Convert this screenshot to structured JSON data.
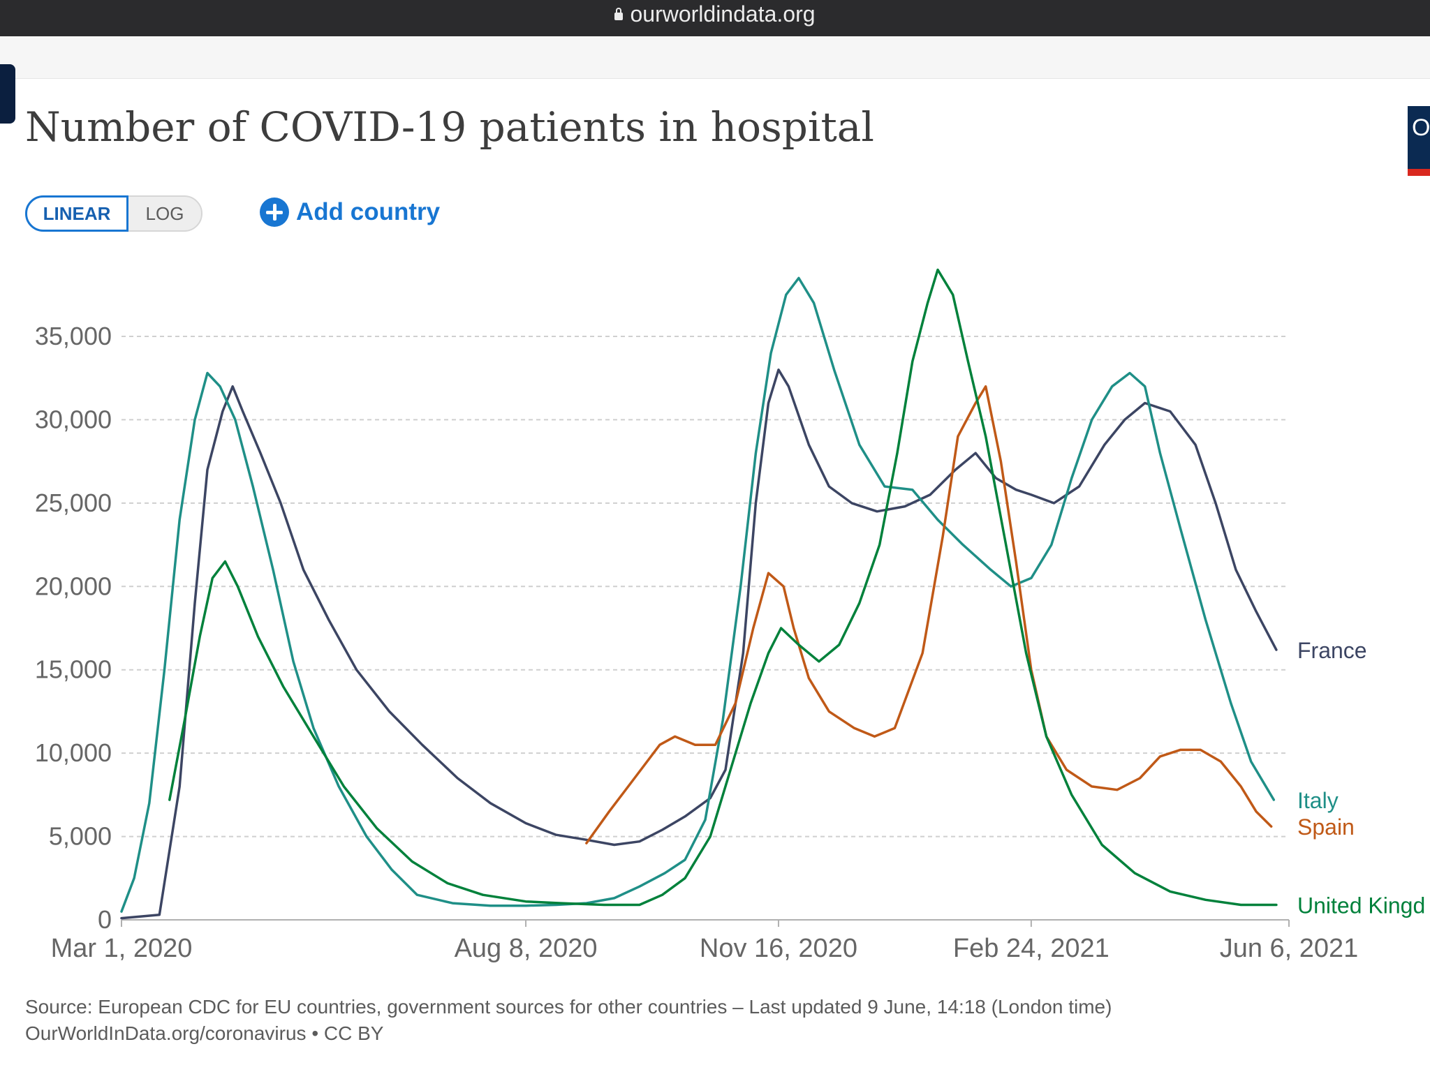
{
  "browser": {
    "url": "ourworldindata.org"
  },
  "header": {
    "title": "Number of COVID-19 patients in hospital",
    "scale_options": [
      "LINEAR",
      "LOG"
    ],
    "active_scale": "LINEAR",
    "add_country_label": "Add country",
    "right_badge_text": "O"
  },
  "source": {
    "line1": "Source: European CDC for EU countries, government sources for other countries – Last updated 9 June, 14:18 (London time)",
    "line2": "OurWorldInData.org/coronavirus • CC BY"
  },
  "chart_data": {
    "type": "line",
    "title": "Number of COVID-19 patients in hospital",
    "x_type": "date",
    "x_ticks": [
      {
        "date": "2020-03-01",
        "label": "Mar 1, 2020"
      },
      {
        "date": "2020-08-08",
        "label": "Aug 8, 2020"
      },
      {
        "date": "2020-11-16",
        "label": "Nov 16, 2020"
      },
      {
        "date": "2021-02-24",
        "label": "Feb 24, 2021"
      },
      {
        "date": "2021-06-06",
        "label": "Jun 6, 2021"
      }
    ],
    "xlim": [
      "2020-03-01",
      "2021-06-06"
    ],
    "ylim": [
      0,
      35000
    ],
    "y_ticks": [
      {
        "value": 0,
        "label": "0"
      },
      {
        "value": 5000,
        "label": "5,000"
      },
      {
        "value": 10000,
        "label": "10,000"
      },
      {
        "value": 15000,
        "label": "15,000"
      },
      {
        "value": 20000,
        "label": "20,000"
      },
      {
        "value": 25000,
        "label": "25,000"
      },
      {
        "value": 30000,
        "label": "30,000"
      },
      {
        "value": 35000,
        "label": "35,000"
      }
    ],
    "grid": "horizontal dashed",
    "legend": "labels at line ends, right",
    "series": [
      {
        "name": "France",
        "color": "#3c4563",
        "points": [
          [
            "2020-03-01",
            100
          ],
          [
            "2020-03-16",
            300
          ],
          [
            "2020-03-24",
            8000
          ],
          [
            "2020-03-30",
            19000
          ],
          [
            "2020-04-04",
            27000
          ],
          [
            "2020-04-10",
            30500
          ],
          [
            "2020-04-14",
            32000
          ],
          [
            "2020-04-18",
            30500
          ],
          [
            "2020-04-25",
            28000
          ],
          [
            "2020-05-03",
            25000
          ],
          [
            "2020-05-12",
            21000
          ],
          [
            "2020-05-22",
            18000
          ],
          [
            "2020-06-02",
            15000
          ],
          [
            "2020-06-15",
            12500
          ],
          [
            "2020-06-28",
            10500
          ],
          [
            "2020-07-12",
            8500
          ],
          [
            "2020-07-25",
            7000
          ],
          [
            "2020-08-08",
            5800
          ],
          [
            "2020-08-20",
            5100
          ],
          [
            "2020-09-01",
            4800
          ],
          [
            "2020-09-12",
            4500
          ],
          [
            "2020-09-22",
            4700
          ],
          [
            "2020-10-01",
            5400
          ],
          [
            "2020-10-10",
            6200
          ],
          [
            "2020-10-20",
            7300
          ],
          [
            "2020-10-26",
            9000
          ],
          [
            "2020-11-02",
            16000
          ],
          [
            "2020-11-07",
            25000
          ],
          [
            "2020-11-12",
            31000
          ],
          [
            "2020-11-16",
            33000
          ],
          [
            "2020-11-20",
            32000
          ],
          [
            "2020-11-28",
            28500
          ],
          [
            "2020-12-06",
            26000
          ],
          [
            "2020-12-15",
            25000
          ],
          [
            "2020-12-25",
            24500
          ],
          [
            "2021-01-05",
            24800
          ],
          [
            "2021-01-15",
            25500
          ],
          [
            "2021-01-25",
            27000
          ],
          [
            "2021-02-02",
            28000
          ],
          [
            "2021-02-10",
            26500
          ],
          [
            "2021-02-18",
            25800
          ],
          [
            "2021-02-24",
            25500
          ],
          [
            "2021-03-05",
            25000
          ],
          [
            "2021-03-15",
            26000
          ],
          [
            "2021-03-25",
            28500
          ],
          [
            "2021-04-02",
            30000
          ],
          [
            "2021-04-10",
            31000
          ],
          [
            "2021-04-20",
            30500
          ],
          [
            "2021-04-30",
            28500
          ],
          [
            "2021-05-08",
            25000
          ],
          [
            "2021-05-16",
            21000
          ],
          [
            "2021-05-24",
            18500
          ],
          [
            "2021-06-01",
            16200
          ]
        ]
      },
      {
        "name": "Italy",
        "color": "#1f8f87",
        "points": [
          [
            "2020-03-01",
            500
          ],
          [
            "2020-03-06",
            2500
          ],
          [
            "2020-03-12",
            7000
          ],
          [
            "2020-03-18",
            15000
          ],
          [
            "2020-03-24",
            24000
          ],
          [
            "2020-03-30",
            30000
          ],
          [
            "2020-04-04",
            32800
          ],
          [
            "2020-04-09",
            32000
          ],
          [
            "2020-04-15",
            30000
          ],
          [
            "2020-04-22",
            26000
          ],
          [
            "2020-04-30",
            21000
          ],
          [
            "2020-05-08",
            15500
          ],
          [
            "2020-05-16",
            11500
          ],
          [
            "2020-05-26",
            8000
          ],
          [
            "2020-06-06",
            5000
          ],
          [
            "2020-06-16",
            3000
          ],
          [
            "2020-06-26",
            1500
          ],
          [
            "2020-07-10",
            1000
          ],
          [
            "2020-07-25",
            850
          ],
          [
            "2020-08-08",
            850
          ],
          [
            "2020-08-20",
            900
          ],
          [
            "2020-09-01",
            1000
          ],
          [
            "2020-09-12",
            1300
          ],
          [
            "2020-09-22",
            2000
          ],
          [
            "2020-10-02",
            2800
          ],
          [
            "2020-10-10",
            3600
          ],
          [
            "2020-10-18",
            6000
          ],
          [
            "2020-10-25",
            12000
          ],
          [
            "2020-11-01",
            20000
          ],
          [
            "2020-11-07",
            28000
          ],
          [
            "2020-11-13",
            34000
          ],
          [
            "2020-11-19",
            37500
          ],
          [
            "2020-11-24",
            38500
          ],
          [
            "2020-11-30",
            37000
          ],
          [
            "2020-12-08",
            33000
          ],
          [
            "2020-12-18",
            28500
          ],
          [
            "2020-12-28",
            26000
          ],
          [
            "2021-01-08",
            25800
          ],
          [
            "2021-01-18",
            24000
          ],
          [
            "2021-01-28",
            22500
          ],
          [
            "2021-02-08",
            21000
          ],
          [
            "2021-02-16",
            20000
          ],
          [
            "2021-02-24",
            20500
          ],
          [
            "2021-03-04",
            22500
          ],
          [
            "2021-03-12",
            26500
          ],
          [
            "2021-03-20",
            30000
          ],
          [
            "2021-03-28",
            32000
          ],
          [
            "2021-04-04",
            32800
          ],
          [
            "2021-04-10",
            32000
          ],
          [
            "2021-04-16",
            28000
          ],
          [
            "2021-04-24",
            23500
          ],
          [
            "2021-05-04",
            18000
          ],
          [
            "2021-05-14",
            13000
          ],
          [
            "2021-05-22",
            9500
          ],
          [
            "2021-05-31",
            7200
          ]
        ]
      },
      {
        "name": "Spain",
        "color": "#c05917",
        "points": [
          [
            "2020-09-01",
            4600
          ],
          [
            "2020-09-10",
            6500
          ],
          [
            "2020-09-20",
            8500
          ],
          [
            "2020-09-30",
            10500
          ],
          [
            "2020-10-06",
            11000
          ],
          [
            "2020-10-14",
            10500
          ],
          [
            "2020-10-22",
            10500
          ],
          [
            "2020-10-30",
            13000
          ],
          [
            "2020-11-06",
            17500
          ],
          [
            "2020-11-12",
            20800
          ],
          [
            "2020-11-18",
            20000
          ],
          [
            "2020-11-22",
            17500
          ],
          [
            "2020-11-28",
            14500
          ],
          [
            "2020-12-06",
            12500
          ],
          [
            "2020-12-16",
            11500
          ],
          [
            "2020-12-24",
            11000
          ],
          [
            "2021-01-01",
            11500
          ],
          [
            "2021-01-12",
            16000
          ],
          [
            "2021-01-20",
            23000
          ],
          [
            "2021-01-26",
            29000
          ],
          [
            "2021-02-02",
            31000
          ],
          [
            "2021-02-06",
            32000
          ],
          [
            "2021-02-12",
            27500
          ],
          [
            "2021-02-18",
            21500
          ],
          [
            "2021-02-24",
            15000
          ],
          [
            "2021-03-02",
            11000
          ],
          [
            "2021-03-10",
            9000
          ],
          [
            "2021-03-20",
            8000
          ],
          [
            "2021-03-30",
            7800
          ],
          [
            "2021-04-08",
            8500
          ],
          [
            "2021-04-16",
            9800
          ],
          [
            "2021-04-24",
            10200
          ],
          [
            "2021-05-02",
            10200
          ],
          [
            "2021-05-10",
            9500
          ],
          [
            "2021-05-18",
            8000
          ],
          [
            "2021-05-24",
            6500
          ],
          [
            "2021-05-30",
            5600
          ]
        ]
      },
      {
        "name": "United Kingd",
        "color": "#00813b",
        "points": [
          [
            "2020-03-20",
            7200
          ],
          [
            "2020-03-26",
            12000
          ],
          [
            "2020-04-01",
            17000
          ],
          [
            "2020-04-06",
            20500
          ],
          [
            "2020-04-11",
            21500
          ],
          [
            "2020-04-16",
            20000
          ],
          [
            "2020-04-24",
            17000
          ],
          [
            "2020-05-04",
            14000
          ],
          [
            "2020-05-16",
            11000
          ],
          [
            "2020-05-28",
            8000
          ],
          [
            "2020-06-10",
            5500
          ],
          [
            "2020-06-24",
            3500
          ],
          [
            "2020-07-08",
            2200
          ],
          [
            "2020-07-22",
            1500
          ],
          [
            "2020-08-08",
            1100
          ],
          [
            "2020-08-22",
            1000
          ],
          [
            "2020-09-08",
            900
          ],
          [
            "2020-09-22",
            900
          ],
          [
            "2020-10-01",
            1500
          ],
          [
            "2020-10-10",
            2500
          ],
          [
            "2020-10-20",
            5000
          ],
          [
            "2020-10-28",
            9000
          ],
          [
            "2020-11-05",
            13000
          ],
          [
            "2020-11-12",
            16000
          ],
          [
            "2020-11-17",
            17500
          ],
          [
            "2020-11-24",
            16500
          ],
          [
            "2020-12-02",
            15500
          ],
          [
            "2020-12-10",
            16500
          ],
          [
            "2020-12-18",
            19000
          ],
          [
            "2020-12-26",
            22500
          ],
          [
            "2021-01-02",
            28000
          ],
          [
            "2021-01-08",
            33500
          ],
          [
            "2021-01-14",
            37000
          ],
          [
            "2021-01-18",
            39000
          ],
          [
            "2021-01-24",
            37500
          ],
          [
            "2021-01-30",
            33500
          ],
          [
            "2021-02-06",
            29000
          ],
          [
            "2021-02-14",
            22500
          ],
          [
            "2021-02-22",
            16000
          ],
          [
            "2021-03-02",
            11000
          ],
          [
            "2021-03-12",
            7500
          ],
          [
            "2021-03-24",
            4500
          ],
          [
            "2021-04-06",
            2800
          ],
          [
            "2021-04-20",
            1700
          ],
          [
            "2021-05-04",
            1200
          ],
          [
            "2021-05-18",
            900
          ],
          [
            "2021-06-01",
            900
          ]
        ]
      }
    ]
  }
}
